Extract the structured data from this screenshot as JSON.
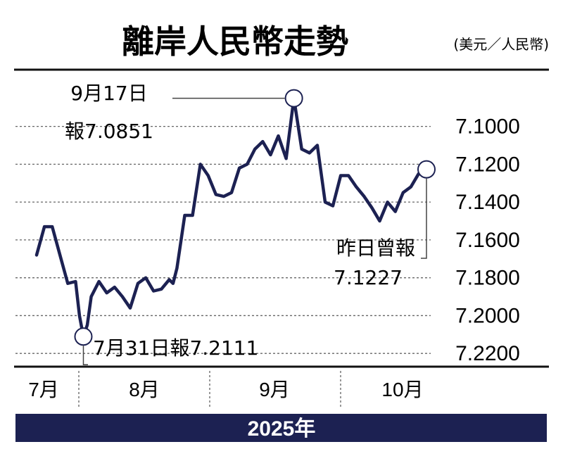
{
  "chart_data": {
    "type": "line",
    "title": "離岸人民幣走勢",
    "unit": "(美元／人民幣)",
    "year_label": "2025年",
    "y_reversed": true,
    "ylim": [
      7.227,
      7.07
    ],
    "yticks": [
      7.1,
      7.12,
      7.14,
      7.16,
      7.18,
      7.2,
      7.22
    ],
    "ytick_labels": [
      "7.1000",
      "7.1200",
      "7.1400",
      "7.1600",
      "7.1800",
      "7.2000",
      "7.2200"
    ],
    "months": [
      "7月",
      "8月",
      "9月",
      "10月"
    ],
    "x": [
      0,
      2,
      4,
      6,
      8,
      10,
      11,
      12,
      13,
      14,
      16,
      18,
      20,
      22,
      24,
      26,
      28,
      30,
      32,
      34,
      35,
      36,
      38,
      40,
      42,
      44,
      46,
      48,
      50,
      52,
      54,
      56,
      58,
      60,
      62,
      64,
      66,
      68,
      70,
      72,
      74,
      76,
      78,
      80,
      82,
      84,
      86,
      88,
      90,
      92,
      94,
      96,
      98,
      100
    ],
    "values": [
      7.168,
      7.153,
      7.153,
      7.168,
      7.183,
      7.182,
      7.2,
      7.2111,
      7.205,
      7.19,
      7.182,
      7.188,
      7.185,
      7.19,
      7.196,
      7.183,
      7.18,
      7.187,
      7.186,
      7.181,
      7.183,
      7.175,
      7.147,
      7.147,
      7.12,
      7.126,
      7.136,
      7.137,
      7.135,
      7.122,
      7.12,
      7.112,
      7.108,
      7.115,
      7.105,
      7.117,
      7.0851,
      7.112,
      7.114,
      7.11,
      7.14,
      7.142,
      7.126,
      7.126,
      7.132,
      7.137,
      7.143,
      7.15,
      7.14,
      7.145,
      7.135,
      7.132,
      7.125,
      7.1227
    ],
    "annotations": [
      {
        "line1": "9月17日",
        "line2": "報7.0851",
        "x": 66,
        "value": 7.0851
      },
      {
        "line1": "7月31日報7.2111",
        "x": 12,
        "value": 7.2111
      },
      {
        "line1": "昨日曾報",
        "line2": "7.1227",
        "x": 100,
        "value": 7.1227
      }
    ]
  }
}
